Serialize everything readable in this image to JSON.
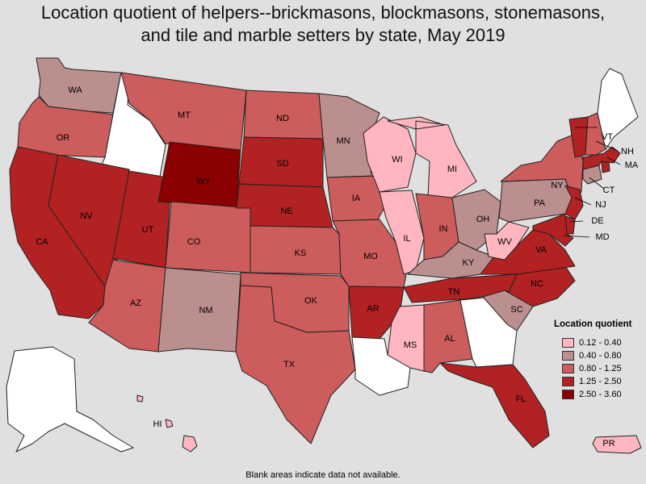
{
  "title": {
    "line1": "Location quotient of helpers--brickmasons, blockmasons, stonemasons,",
    "line2": "and tile and marble setters by state, May 2019"
  },
  "legend": {
    "title": "Location quotient",
    "items": [
      {
        "label": "0.12 - 0.40",
        "color": "#ffb6c1"
      },
      {
        "label": "0.40 - 0.80",
        "color": "#bc8f8f"
      },
      {
        "label": "0.80 - 1.25",
        "color": "#cd5c5c"
      },
      {
        "label": "1.25 - 2.50",
        "color": "#b22222"
      },
      {
        "label": "2.50 - 3.60",
        "color": "#8b0000"
      }
    ]
  },
  "no_data_color": "#ffffff",
  "footnote": "Blank areas indicate data not available.",
  "states": [
    {
      "abbr": "WA",
      "bin": 1
    },
    {
      "abbr": "OR",
      "bin": 2
    },
    {
      "abbr": "CA",
      "bin": 3
    },
    {
      "abbr": "ID",
      "bin": null
    },
    {
      "abbr": "NV",
      "bin": 3
    },
    {
      "abbr": "UT",
      "bin": 3
    },
    {
      "abbr": "AZ",
      "bin": 2
    },
    {
      "abbr": "MT",
      "bin": 2
    },
    {
      "abbr": "WY",
      "bin": 4
    },
    {
      "abbr": "CO",
      "bin": 2
    },
    {
      "abbr": "NM",
      "bin": 1
    },
    {
      "abbr": "ND",
      "bin": 2
    },
    {
      "abbr": "SD",
      "bin": 3
    },
    {
      "abbr": "NE",
      "bin": 3
    },
    {
      "abbr": "KS",
      "bin": 2
    },
    {
      "abbr": "OK",
      "bin": 2
    },
    {
      "abbr": "TX",
      "bin": 2
    },
    {
      "abbr": "MN",
      "bin": 1
    },
    {
      "abbr": "IA",
      "bin": 2
    },
    {
      "abbr": "MO",
      "bin": 2
    },
    {
      "abbr": "AR",
      "bin": 3
    },
    {
      "abbr": "LA",
      "bin": null
    },
    {
      "abbr": "WI",
      "bin": 0
    },
    {
      "abbr": "IL",
      "bin": 0
    },
    {
      "abbr": "MI",
      "bin": 0
    },
    {
      "abbr": "IN",
      "bin": 2
    },
    {
      "abbr": "OH",
      "bin": 1
    },
    {
      "abbr": "KY",
      "bin": 1
    },
    {
      "abbr": "TN",
      "bin": 3
    },
    {
      "abbr": "MS",
      "bin": 0
    },
    {
      "abbr": "AL",
      "bin": 2
    },
    {
      "abbr": "GA",
      "bin": null
    },
    {
      "abbr": "FL",
      "bin": 3
    },
    {
      "abbr": "SC",
      "bin": 1
    },
    {
      "abbr": "NC",
      "bin": 3
    },
    {
      "abbr": "VA",
      "bin": 3
    },
    {
      "abbr": "WV",
      "bin": 0
    },
    {
      "abbr": "PA",
      "bin": 1
    },
    {
      "abbr": "NY",
      "bin": 2
    },
    {
      "abbr": "NJ",
      "bin": 3
    },
    {
      "abbr": "DE",
      "bin": 3
    },
    {
      "abbr": "MD",
      "bin": 3
    },
    {
      "abbr": "CT",
      "bin": 1
    },
    {
      "abbr": "RI",
      "bin": 3
    },
    {
      "abbr": "MA",
      "bin": 3
    },
    {
      "abbr": "VT",
      "bin": 3
    },
    {
      "abbr": "NH",
      "bin": 2
    },
    {
      "abbr": "ME",
      "bin": null
    },
    {
      "abbr": "AK",
      "bin": null
    },
    {
      "abbr": "HI",
      "bin": 0
    },
    {
      "abbr": "PR",
      "bin": 0
    }
  ]
}
